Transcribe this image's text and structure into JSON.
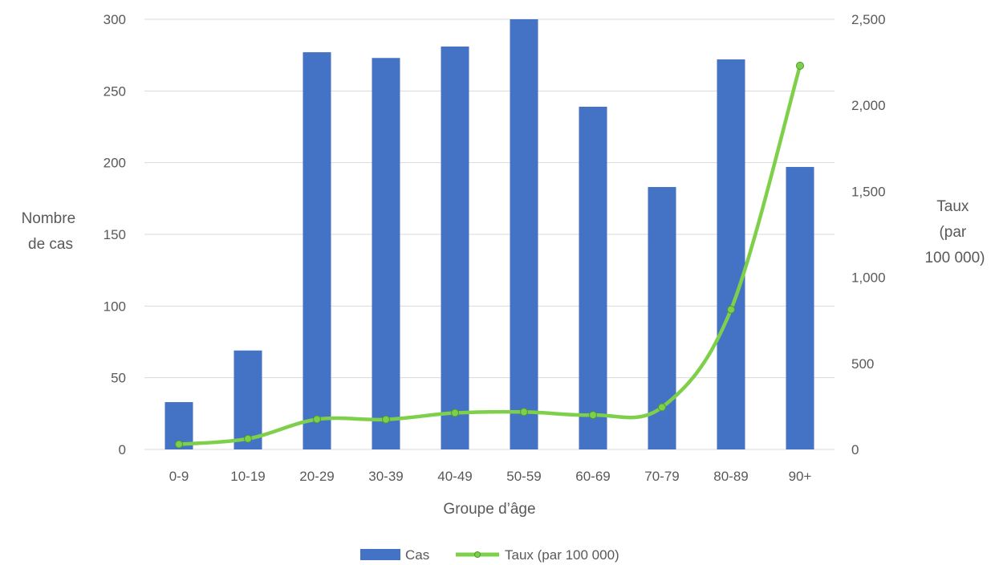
{
  "chart_data": {
    "type": "bar",
    "title": "",
    "xlabel": "Groupe d’âge",
    "ylabel_left_lines": [
      "Nombre",
      "de cas"
    ],
    "ylabel_right_lines": [
      "Taux",
      "(par",
      "100 000)"
    ],
    "categories": [
      "0-9",
      "10-19",
      "20-29",
      "30-39",
      "40-49",
      "50-59",
      "60-69",
      "70-79",
      "80-89",
      "90+"
    ],
    "series": [
      {
        "name": "Cas",
        "kind": "bar",
        "axis": "left",
        "color": "#4472c4",
        "values": [
          33,
          69,
          277,
          273,
          281,
          300,
          239,
          183,
          272,
          197
        ]
      },
      {
        "name": "Taux (par 100 000)",
        "kind": "line",
        "axis": "right",
        "color": "#7ed04b",
        "values": [
          30,
          62,
          175,
          174,
          212,
          218,
          200,
          245,
          813,
          2230
        ]
      }
    ],
    "ylim_left": [
      0,
      300
    ],
    "yticks_left": [
      "0",
      "50",
      "100",
      "150",
      "200",
      "250",
      "300"
    ],
    "ylim_right": [
      0,
      2500
    ],
    "yticks_right": [
      "0",
      "500",
      "1,000",
      "1,500",
      "2,000",
      "2,500"
    ],
    "grid": true,
    "legend_position": "bottom",
    "colors": {
      "grid": "#d9d9d9",
      "text": "#595959"
    }
  }
}
